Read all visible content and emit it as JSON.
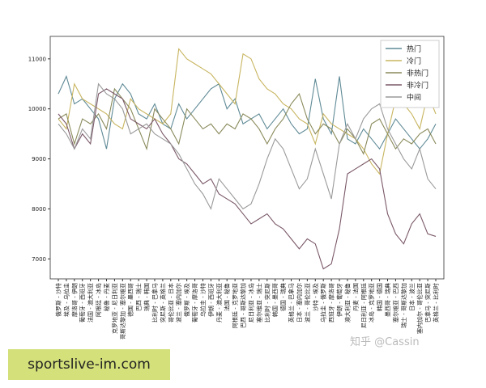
{
  "chart_data": {
    "type": "line",
    "categories": [
      "俄罗斯 - 沙特",
      "埃及 - 乌拉圭",
      "摩洛哥 - 伊朗",
      "葡萄牙 - 西班牙",
      "法国 - 澳大利亚",
      "阿根廷 - 冰岛",
      "秘鲁 - 丹麦",
      "克罗地亚 - 尼日利亚",
      "哥斯达黎加 - 塞尔维亚",
      "德国 - 墨西哥",
      "巴西 - 瑞士",
      "瑞典 - 韩国",
      "比利时 - 巴拿马",
      "突尼斯 - 英格兰",
      "哥伦比亚 - 日本",
      "波兰 - 塞内加尔",
      "俄罗斯 - 埃及",
      "葡萄牙 - 摩洛哥",
      "乌拉圭 - 沙特",
      "伊朗 - 西班牙",
      "丹麦 - 澳大利亚",
      "法国 - 秘鲁",
      "阿根廷 - 克罗地亚",
      "巴西 - 哥斯达黎加",
      "尼日利亚 - 冰岛",
      "塞尔维亚 - 瑞士",
      "比利时 - 突尼斯",
      "韩国 - 墨西哥",
      "德国 - 瑞典",
      "英格兰 - 巴拿马",
      "日本 - 塞内加尔",
      "波兰 - 哥伦比亚",
      "沙特 - 埃及",
      "乌拉圭 - 俄罗斯",
      "西班牙 - 摩洛哥",
      "伊朗 - 葡萄牙",
      "澳大利亚 - 秘鲁",
      "丹麦 - 法国",
      "尼日利亚 - 阿根廷",
      "冰岛 - 克罗地亚",
      "韩国 - 德国",
      "墨西哥 - 瑞典",
      "塞尔维亚 - 巴西",
      "瑞士 - 哥斯达黎加",
      "日本 - 波兰",
      "塞内加尔 - 哥伦比亚",
      "巴拿马 - 突尼斯",
      "英格兰 - 比利时"
    ],
    "series": [
      {
        "name": "热门",
        "color": "#5f8a96",
        "values": [
          10300,
          10650,
          10100,
          10200,
          10000,
          9800,
          9200,
          10200,
          10500,
          10300,
          9900,
          9800,
          10100,
          9700,
          9600,
          10100,
          9800,
          10000,
          10200,
          10400,
          10500,
          10000,
          10200,
          9700,
          9800,
          9900,
          9600,
          9800,
          10000,
          9700,
          9500,
          9600,
          10600,
          9800,
          9500,
          10650,
          9400,
          9300,
          9600,
          9400,
          9200,
          9500,
          9800,
          9600,
          9400,
          9200,
          9400,
          9700
        ]
      },
      {
        "name": "冷门",
        "color": "#c8b560",
        "values": [
          9800,
          9600,
          10500,
          10200,
          10100,
          10000,
          9900,
          9700,
          9600,
          10200,
          10000,
          9900,
          9800,
          9700,
          9900,
          11200,
          11000,
          10900,
          10800,
          10700,
          10500,
          10300,
          10100,
          11100,
          11000,
          10600,
          10400,
          10300,
          10100,
          10000,
          9800,
          9700,
          9300,
          9900,
          9700,
          9600,
          9500,
          9400,
          9200,
          8900,
          8700,
          9500,
          10200,
          10100,
          9900,
          9600,
          10300,
          9900
        ]
      },
      {
        "name": "非热门",
        "color": "#8a8a5c",
        "values": [
          9800,
          9900,
          9300,
          9800,
          9700,
          9900,
          9600,
          10400,
          10200,
          10000,
          9600,
          9200,
          10000,
          9800,
          9600,
          9300,
          10000,
          9800,
          9600,
          9700,
          9500,
          9700,
          9600,
          9900,
          9800,
          9600,
          9300,
          9600,
          9800,
          10100,
          10300,
          9800,
          9500,
          9700,
          9600,
          9300,
          9600,
          9400,
          9100,
          9700,
          9800,
          9500,
          9200,
          9400,
          9300,
          9500,
          9600,
          9300
        ]
      },
      {
        "name": "非冷门",
        "color": "#7a5868",
        "values": [
          9900,
          9700,
          9200,
          9500,
          9300,
          10300,
          10400,
          10300,
          10200,
          9800,
          9700,
          9600,
          9800,
          9500,
          9300,
          9000,
          8900,
          8700,
          8500,
          8600,
          8300,
          8200,
          8100,
          7900,
          7700,
          7800,
          7900,
          7700,
          7600,
          7400,
          7200,
          7400,
          7300,
          6800,
          6900,
          7600,
          8700,
          8800,
          8900,
          9000,
          8800,
          7900,
          7500,
          7300,
          7700,
          7900,
          7500,
          7450
        ]
      },
      {
        "name": "中间",
        "color": "#9a9a9a",
        "values": [
          9700,
          9500,
          9200,
          9600,
          9400,
          10500,
          10300,
          10200,
          10000,
          9500,
          9600,
          9700,
          9500,
          9400,
          9300,
          9100,
          8800,
          8500,
          8300,
          8000,
          8600,
          8400,
          8200,
          8000,
          8100,
          8500,
          9000,
          9400,
          9200,
          8800,
          8400,
          8600,
          9200,
          8700,
          8200,
          9300,
          9700,
          9400,
          9800,
          10000,
          10100,
          9600,
          9300,
          9000,
          8800,
          9200,
          8600,
          8400
        ]
      }
    ],
    "ylim": [
      6600,
      11450
    ],
    "yticks": [
      7000,
      8000,
      9000,
      10000,
      11000
    ],
    "legend": "upper right"
  },
  "watermark": "知乎 @Cassin",
  "banner": "sportslive-im.com"
}
